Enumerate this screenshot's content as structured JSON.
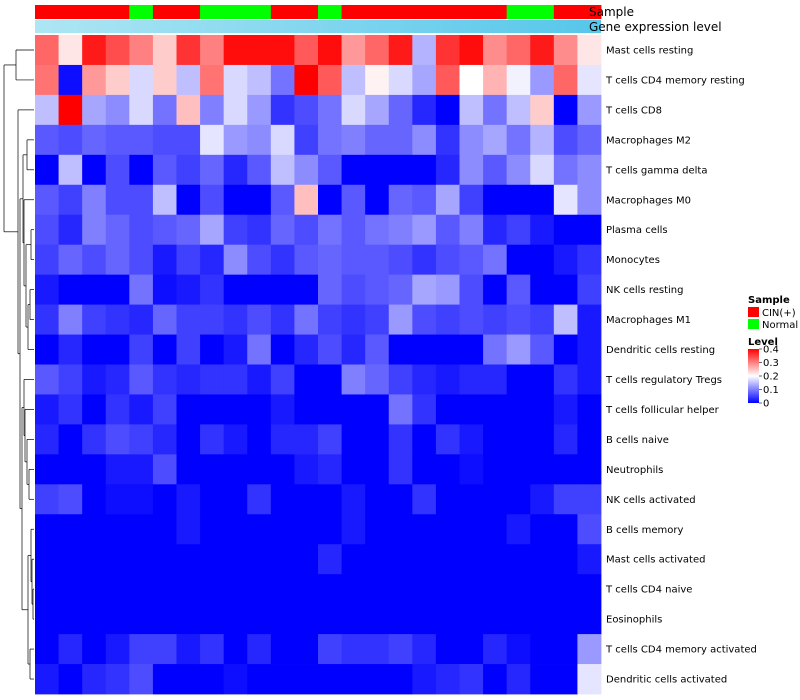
{
  "chart_data": {
    "type": "heatmap",
    "title": "",
    "annotation_titles": [
      "Sample",
      "Gene expression level"
    ],
    "sample_annotation": [
      "CIN(+)",
      "CIN(+)",
      "CIN(+)",
      "CIN(+)",
      "Normal",
      "CIN(+)",
      "CIN(+)",
      "Normal",
      "Normal",
      "Normal",
      "CIN(+)",
      "CIN(+)",
      "Normal",
      "CIN(+)",
      "CIN(+)",
      "CIN(+)",
      "CIN(+)",
      "CIN(+)",
      "CIN(+)",
      "CIN(+)",
      "Normal",
      "Normal",
      "CIN(+)",
      "CIN(+)"
    ],
    "rows": [
      "Mast cells resting",
      "T cells CD4 memory resting",
      "T cells CD8",
      "Macrophages M2",
      "T cells gamma delta",
      "Macrophages M0",
      "Plasma cells",
      "Monocytes",
      "NK cells resting",
      "Macrophages M1",
      "Dendritic cells resting",
      "T cells regulatory  Tregs",
      "T cells follicular helper",
      "B cells naive",
      "Neutrophils",
      "NK cells activated",
      "B cells memory",
      "Mast cells activated",
      "T cells CD4 naive",
      "Eosinophils",
      "T cells CD4 memory activated",
      "Dendritic cells activated"
    ],
    "values": [
      [
        0.32,
        0.22,
        0.38,
        0.34,
        0.3,
        0.24,
        0.36,
        0.3,
        0.39,
        0.39,
        0.39,
        0.33,
        0.39,
        0.28,
        0.32,
        0.38,
        0.14,
        0.36,
        0.39,
        0.29,
        0.32,
        0.38,
        0.29,
        0.22
      ],
      [
        0.31,
        0.01,
        0.28,
        0.24,
        0.17,
        0.24,
        0.15,
        0.31,
        0.17,
        0.15,
        0.09,
        0.4,
        0.33,
        0.15,
        0.21,
        0.17,
        0.13,
        0.33,
        0.2,
        0.26,
        0.19,
        0.12,
        0.32,
        0.18
      ],
      [
        0.15,
        0.4,
        0.13,
        0.11,
        0.17,
        0.09,
        0.25,
        0.1,
        0.17,
        0.12,
        0.04,
        0.06,
        0.09,
        0.17,
        0.13,
        0.08,
        0.03,
        0.0,
        0.15,
        0.09,
        0.15,
        0.24,
        0.0,
        0.12
      ],
      [
        0.07,
        0.06,
        0.08,
        0.07,
        0.07,
        0.06,
        0.06,
        0.18,
        0.12,
        0.11,
        0.17,
        0.05,
        0.09,
        0.1,
        0.08,
        0.08,
        0.11,
        0.04,
        0.11,
        0.13,
        0.09,
        0.14,
        0.06,
        0.08
      ],
      [
        0.0,
        0.15,
        0.0,
        0.06,
        0.0,
        0.07,
        0.05,
        0.08,
        0.03,
        0.07,
        0.15,
        0.11,
        0.07,
        0.0,
        0.0,
        0.0,
        0.0,
        0.03,
        0.11,
        0.07,
        0.11,
        0.17,
        0.09,
        0.11
      ],
      [
        0.07,
        0.05,
        0.1,
        0.06,
        0.06,
        0.15,
        0.0,
        0.06,
        0.0,
        0.0,
        0.07,
        0.25,
        0.0,
        0.07,
        0.0,
        0.08,
        0.07,
        0.13,
        0.05,
        0.0,
        0.0,
        0.0,
        0.18,
        0.11
      ],
      [
        0.06,
        0.03,
        0.1,
        0.08,
        0.06,
        0.07,
        0.08,
        0.13,
        0.05,
        0.04,
        0.08,
        0.06,
        0.09,
        0.07,
        0.09,
        0.1,
        0.12,
        0.07,
        0.1,
        0.03,
        0.05,
        0.02,
        0.0,
        0.0
      ],
      [
        0.05,
        0.08,
        0.06,
        0.08,
        0.06,
        0.02,
        0.05,
        0.03,
        0.11,
        0.06,
        0.04,
        0.07,
        0.08,
        0.07,
        0.07,
        0.06,
        0.04,
        0.06,
        0.07,
        0.09,
        0.0,
        0.0,
        0.02,
        0.04
      ],
      [
        0.02,
        0.0,
        0.0,
        0.0,
        0.09,
        0.01,
        0.02,
        0.04,
        0.0,
        0.0,
        0.0,
        0.0,
        0.08,
        0.06,
        0.07,
        0.08,
        0.13,
        0.12,
        0.06,
        0.0,
        0.07,
        0.0,
        0.0,
        0.05
      ],
      [
        0.04,
        0.1,
        0.05,
        0.04,
        0.03,
        0.08,
        0.05,
        0.05,
        0.04,
        0.06,
        0.04,
        0.09,
        0.05,
        0.04,
        0.05,
        0.12,
        0.06,
        0.05,
        0.06,
        0.05,
        0.06,
        0.05,
        0.15,
        0.02
      ],
      [
        0.0,
        0.03,
        0.0,
        0.0,
        0.05,
        0.0,
        0.05,
        0.0,
        0.02,
        0.09,
        0.0,
        0.03,
        0.06,
        0.03,
        0.07,
        0.0,
        0.0,
        0.0,
        0.0,
        0.09,
        0.12,
        0.07,
        0.0,
        0.02
      ],
      [
        0.07,
        0.05,
        0.02,
        0.03,
        0.07,
        0.04,
        0.03,
        0.04,
        0.04,
        0.02,
        0.05,
        0.0,
        0.0,
        0.1,
        0.08,
        0.05,
        0.03,
        0.02,
        0.03,
        0.03,
        0.0,
        0.0,
        0.04,
        0.02
      ],
      [
        0.02,
        0.04,
        0.0,
        0.04,
        0.02,
        0.05,
        0.0,
        0.0,
        0.0,
        0.0,
        0.02,
        0.0,
        0.0,
        0.0,
        0.0,
        0.09,
        0.04,
        0.0,
        0.0,
        0.0,
        0.0,
        0.0,
        0.02,
        0.0
      ],
      [
        0.03,
        0.0,
        0.04,
        0.06,
        0.05,
        0.03,
        0.0,
        0.04,
        0.02,
        0.0,
        0.03,
        0.03,
        0.05,
        0.0,
        0.0,
        0.04,
        0.0,
        0.04,
        0.02,
        0.0,
        0.0,
        0.0,
        0.03,
        0.0
      ],
      [
        0.0,
        0.0,
        0.0,
        0.02,
        0.02,
        0.06,
        0.0,
        0.0,
        0.0,
        0.0,
        0.0,
        0.02,
        0.03,
        0.0,
        0.0,
        0.04,
        0.0,
        0.0,
        0.01,
        0.0,
        0.0,
        0.0,
        0.0,
        0.0
      ],
      [
        0.05,
        0.06,
        0.0,
        0.01,
        0.01,
        0.0,
        0.02,
        0.0,
        0.0,
        0.04,
        0.0,
        0.0,
        0.0,
        0.02,
        0.0,
        0.0,
        0.04,
        0.0,
        0.0,
        0.0,
        0.0,
        0.02,
        0.05,
        0.05
      ],
      [
        0.0,
        0.0,
        0.0,
        0.0,
        0.0,
        0.0,
        0.02,
        0.0,
        0.0,
        0.0,
        0.0,
        0.0,
        0.0,
        0.02,
        0.0,
        0.0,
        0.0,
        0.0,
        0.0,
        0.0,
        0.02,
        0.0,
        0.0,
        0.06
      ],
      [
        0.0,
        0.0,
        0.0,
        0.0,
        0.0,
        0.0,
        0.0,
        0.0,
        0.0,
        0.0,
        0.0,
        0.0,
        0.03,
        0.0,
        0.0,
        0.0,
        0.0,
        0.0,
        0.0,
        0.0,
        0.0,
        0.0,
        0.0,
        0.02
      ],
      [
        0.0,
        0.0,
        0.0,
        0.0,
        0.0,
        0.0,
        0.0,
        0.0,
        0.0,
        0.0,
        0.0,
        0.0,
        0.0,
        0.0,
        0.0,
        0.0,
        0.0,
        0.0,
        0.0,
        0.0,
        0.0,
        0.0,
        0.0,
        0.0
      ],
      [
        0.0,
        0.0,
        0.0,
        0.0,
        0.0,
        0.0,
        0.0,
        0.0,
        0.0,
        0.0,
        0.0,
        0.0,
        0.0,
        0.0,
        0.0,
        0.0,
        0.0,
        0.0,
        0.0,
        0.0,
        0.0,
        0.0,
        0.0,
        0.0
      ],
      [
        0.0,
        0.03,
        0.0,
        0.02,
        0.05,
        0.05,
        0.02,
        0.04,
        0.0,
        0.03,
        0.0,
        0.0,
        0.05,
        0.04,
        0.04,
        0.05,
        0.03,
        0.0,
        0.0,
        0.03,
        0.01,
        0.0,
        0.0,
        0.12
      ],
      [
        0.02,
        0.0,
        0.03,
        0.04,
        0.06,
        0.0,
        0.0,
        0.0,
        0.01,
        0.0,
        0.0,
        0.0,
        0.0,
        0.0,
        0.0,
        0.0,
        0.02,
        0.03,
        0.04,
        0.0,
        0.03,
        0.0,
        0.0,
        0.18
      ]
    ],
    "color_scale": {
      "min": 0,
      "max": 0.4,
      "low": "#0000ff",
      "mid": "#ffffff",
      "high": "#ff0000",
      "mid_value": 0.2
    },
    "legend": {
      "sample_title": "Sample",
      "sample_entries": [
        {
          "label": "CIN(+)",
          "color": "#ff0000"
        },
        {
          "label": "Normal",
          "color": "#00ff00"
        }
      ],
      "level_title": "Level",
      "level_ticks": [
        "0.4",
        "0.3",
        "0.2",
        "0.1",
        "0"
      ],
      "level_tick_values": [
        0.4,
        0.3,
        0.2,
        0.1,
        0
      ],
      "placement": "right"
    },
    "expression_bar_colors": [
      "#aee6f3",
      "#56c6ea"
    ]
  }
}
